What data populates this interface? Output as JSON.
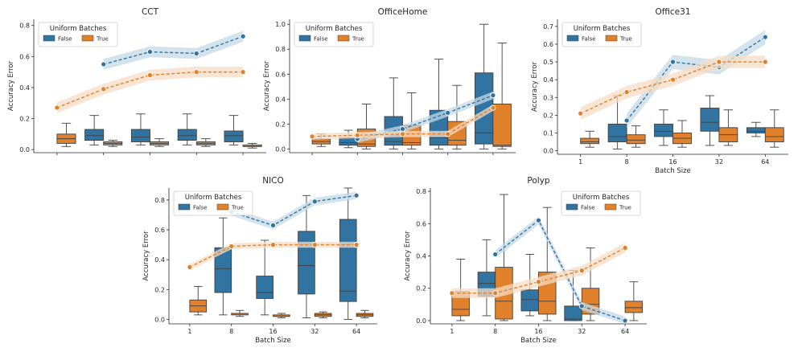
{
  "figure": {
    "x_title": "Batch Size",
    "y_title": "Accuracy Error",
    "legend_title": "Uniform Batches"
  },
  "colors": {
    "False": "#3274a1",
    "True": "#e1812c"
  },
  "chart_data": [
    {
      "type": "box+line",
      "title": "CCT",
      "categories": [
        "1",
        "8",
        "16",
        "32",
        "64"
      ],
      "show_x_tick_labels": false,
      "show_x_title": false,
      "ylim": [
        -0.02,
        0.84
      ],
      "yticks": [
        0.0,
        0.2,
        0.4,
        0.6,
        0.8
      ],
      "legend": {
        "position": "top-left",
        "entries": [
          "False",
          "True"
        ]
      },
      "boxes": {
        "False": [
          null,
          {
            "whislo": 0.03,
            "q1": 0.06,
            "med": 0.09,
            "q3": 0.13,
            "whishi": 0.22
          },
          {
            "whislo": 0.03,
            "q1": 0.05,
            "med": 0.08,
            "q3": 0.13,
            "whishi": 0.23
          },
          {
            "whislo": 0.03,
            "q1": 0.06,
            "med": 0.09,
            "q3": 0.13,
            "whishi": 0.23
          },
          {
            "whislo": 0.03,
            "q1": 0.05,
            "med": 0.09,
            "q3": 0.12,
            "whishi": 0.22
          }
        ],
        "True": [
          {
            "whislo": 0.02,
            "q1": 0.04,
            "med": 0.07,
            "q3": 0.1,
            "whishi": 0.17
          },
          {
            "whislo": 0.02,
            "q1": 0.03,
            "med": 0.04,
            "q3": 0.05,
            "whishi": 0.06
          },
          {
            "whislo": 0.02,
            "q1": 0.03,
            "med": 0.04,
            "q3": 0.05,
            "whishi": 0.07
          },
          {
            "whislo": 0.02,
            "q1": 0.03,
            "med": 0.04,
            "q3": 0.05,
            "whishi": 0.07
          },
          {
            "whislo": 0.01,
            "q1": 0.02,
            "med": 0.02,
            "q3": 0.03,
            "whishi": 0.04
          }
        ]
      },
      "lines": {
        "False": {
          "x": [
            "8",
            "16",
            "32",
            "64"
          ],
          "y": [
            0.55,
            0.63,
            0.62,
            0.73
          ],
          "band": 0.035
        },
        "True": {
          "x": [
            "1",
            "8",
            "16",
            "32",
            "64"
          ],
          "y": [
            0.27,
            0.39,
            0.48,
            0.5,
            0.5
          ],
          "band": 0.035
        }
      }
    },
    {
      "type": "box+line",
      "title": "OfficeHome",
      "categories": [
        "1",
        "8",
        "16",
        "32",
        "64"
      ],
      "show_x_tick_labels": false,
      "show_x_title": false,
      "ylim": [
        -0.03,
        1.04
      ],
      "yticks": [
        0.0,
        0.2,
        0.4,
        0.6,
        0.8,
        1.0
      ],
      "legend": {
        "position": "top-left",
        "entries": [
          "False",
          "True"
        ]
      },
      "boxes": {
        "False": [
          null,
          {
            "whislo": 0.01,
            "q1": 0.03,
            "med": 0.05,
            "q3": 0.09,
            "whishi": 0.15
          },
          {
            "whislo": 0.0,
            "q1": 0.03,
            "med": 0.06,
            "q3": 0.26,
            "whishi": 0.57
          },
          {
            "whislo": 0.0,
            "q1": 0.03,
            "med": 0.09,
            "q3": 0.31,
            "whishi": 0.72
          },
          {
            "whislo": 0.0,
            "q1": 0.04,
            "med": 0.13,
            "q3": 0.61,
            "whishi": 1.0
          }
        ],
        "True": [
          {
            "whislo": 0.02,
            "q1": 0.04,
            "med": 0.06,
            "q3": 0.08,
            "whishi": 0.12
          },
          {
            "whislo": 0.0,
            "q1": 0.02,
            "med": 0.04,
            "q3": 0.16,
            "whishi": 0.36
          },
          {
            "whislo": 0.0,
            "q1": 0.03,
            "med": 0.05,
            "q3": 0.19,
            "whishi": 0.45
          },
          {
            "whislo": 0.0,
            "q1": 0.03,
            "med": 0.07,
            "q3": 0.22,
            "whishi": 0.51
          },
          {
            "whislo": 0.0,
            "q1": 0.02,
            "med": 0.03,
            "q3": 0.36,
            "whishi": 0.85
          }
        ]
      },
      "lines": {
        "False": {
          "x": [
            "8",
            "16",
            "32",
            "64"
          ],
          "y": [
            0.08,
            0.16,
            0.29,
            0.43
          ],
          "band": 0.03
        },
        "True": {
          "x": [
            "1",
            "8",
            "16",
            "32",
            "64"
          ],
          "y": [
            0.1,
            0.11,
            0.12,
            0.12,
            0.33
          ],
          "band": 0.025
        }
      }
    },
    {
      "type": "box+line",
      "title": "Office31",
      "categories": [
        "1",
        "8",
        "16",
        "32",
        "64"
      ],
      "show_x_tick_labels": true,
      "show_x_title": true,
      "ylim": [
        -0.02,
        0.74
      ],
      "yticks": [
        0.0,
        0.1,
        0.2,
        0.3,
        0.4,
        0.5,
        0.6,
        0.7
      ],
      "legend": {
        "position": "top-left",
        "entries": [
          "False",
          "True"
        ]
      },
      "boxes": {
        "False": [
          null,
          {
            "whislo": 0.01,
            "q1": 0.05,
            "med": 0.08,
            "q3": 0.15,
            "whishi": 0.31
          },
          {
            "whislo": 0.03,
            "q1": 0.08,
            "med": 0.11,
            "q3": 0.15,
            "whishi": 0.23
          },
          {
            "whislo": 0.03,
            "q1": 0.11,
            "med": 0.16,
            "q3": 0.24,
            "whishi": 0.31
          },
          {
            "whislo": 0.08,
            "q1": 0.1,
            "med": 0.11,
            "q3": 0.13,
            "whishi": 0.16
          }
        ],
        "True": [
          {
            "whislo": 0.02,
            "q1": 0.04,
            "med": 0.05,
            "q3": 0.07,
            "whishi": 0.11
          },
          {
            "whislo": 0.02,
            "q1": 0.04,
            "med": 0.06,
            "q3": 0.09,
            "whishi": 0.14
          },
          {
            "whislo": 0.02,
            "q1": 0.04,
            "med": 0.07,
            "q3": 0.1,
            "whishi": 0.17
          },
          {
            "whislo": 0.03,
            "q1": 0.05,
            "med": 0.09,
            "q3": 0.13,
            "whishi": 0.23
          },
          {
            "whislo": 0.02,
            "q1": 0.05,
            "med": 0.08,
            "q3": 0.13,
            "whishi": 0.23
          }
        ]
      },
      "lines": {
        "False": {
          "x": [
            "8",
            "16",
            "32",
            "64"
          ],
          "y": [
            0.17,
            0.5,
            0.47,
            0.64
          ],
          "band": 0.04
        },
        "True": {
          "x": [
            "1",
            "8",
            "16",
            "32",
            "64"
          ],
          "y": [
            0.21,
            0.33,
            0.4,
            0.5,
            0.5
          ],
          "band": 0.035
        }
      }
    },
    {
      "type": "box+line",
      "title": "NICO",
      "categories": [
        "1",
        "8",
        "16",
        "32",
        "64"
      ],
      "show_x_tick_labels": true,
      "show_x_title": true,
      "ylim": [
        -0.03,
        0.88
      ],
      "yticks": [
        0.0,
        0.2,
        0.4,
        0.6,
        0.8
      ],
      "legend": {
        "position": "top-left",
        "entries": [
          "False",
          "True"
        ]
      },
      "boxes": {
        "False": [
          null,
          {
            "whislo": 0.03,
            "q1": 0.18,
            "med": 0.34,
            "q3": 0.48,
            "whishi": 0.68
          },
          {
            "whislo": 0.03,
            "q1": 0.14,
            "med": 0.18,
            "q3": 0.29,
            "whishi": 0.53
          },
          {
            "whislo": 0.01,
            "q1": 0.17,
            "med": 0.36,
            "q3": 0.59,
            "whishi": 0.83
          },
          {
            "whislo": 0.0,
            "q1": 0.12,
            "med": 0.19,
            "q3": 0.67,
            "whishi": 0.88
          }
        ],
        "True": [
          {
            "whislo": 0.03,
            "q1": 0.05,
            "med": 0.09,
            "q3": 0.13,
            "whishi": 0.22
          },
          {
            "whislo": 0.02,
            "q1": 0.03,
            "med": 0.04,
            "q3": 0.04,
            "whishi": 0.06
          },
          {
            "whislo": 0.01,
            "q1": 0.02,
            "med": 0.02,
            "q3": 0.03,
            "whishi": 0.04
          },
          {
            "whislo": 0.01,
            "q1": 0.02,
            "med": 0.03,
            "q3": 0.04,
            "whishi": 0.05
          },
          {
            "whislo": 0.01,
            "q1": 0.02,
            "med": 0.03,
            "q3": 0.04,
            "whishi": 0.06
          }
        ]
      },
      "lines": {
        "False": {
          "x": [
            "8",
            "16",
            "32",
            "64"
          ],
          "y": [
            0.72,
            0.63,
            0.79,
            0.83
          ],
          "band": 0.025
        },
        "True": {
          "x": [
            "1",
            "8",
            "16",
            "32",
            "64"
          ],
          "y": [
            0.35,
            0.49,
            0.5,
            0.5,
            0.5
          ],
          "band": 0.02
        }
      }
    },
    {
      "type": "box+line",
      "title": "Polyp",
      "categories": [
        "1",
        "8",
        "16",
        "32",
        "64"
      ],
      "show_x_tick_labels": true,
      "show_x_title": true,
      "ylim": [
        -0.02,
        0.82
      ],
      "yticks": [
        0.0,
        0.2,
        0.4,
        0.6,
        0.8
      ],
      "legend": {
        "position": "top-right",
        "entries": [
          "False",
          "True"
        ]
      },
      "boxes": {
        "False": [
          null,
          {
            "whislo": 0.03,
            "q1": 0.15,
            "med": 0.23,
            "q3": 0.3,
            "whishi": 0.5
          },
          {
            "whislo": 0.03,
            "q1": 0.06,
            "med": 0.13,
            "q3": 0.19,
            "whishi": 0.41
          },
          {
            "whislo": 0.0,
            "q1": 0.0,
            "med": 0.01,
            "q3": 0.09,
            "whishi": 0.31
          },
          null
        ],
        "True": [
          {
            "whislo": 0.0,
            "q1": 0.03,
            "med": 0.07,
            "q3": 0.18,
            "whishi": 0.38
          },
          {
            "whislo": 0.0,
            "q1": 0.01,
            "med": 0.12,
            "q3": 0.33,
            "whishi": 0.78
          },
          {
            "whislo": 0.0,
            "q1": 0.04,
            "med": 0.12,
            "q3": 0.3,
            "whishi": 0.7
          },
          {
            "whislo": 0.0,
            "q1": 0.04,
            "med": 0.1,
            "q3": 0.2,
            "whishi": 0.45
          },
          {
            "whislo": 0.0,
            "q1": 0.05,
            "med": 0.08,
            "q3": 0.12,
            "whishi": 0.24
          }
        ]
      },
      "lines": {
        "False": {
          "x": [
            "8",
            "16",
            "32",
            "64"
          ],
          "y": [
            0.41,
            0.62,
            0.09,
            0.0
          ],
          "band": 0.025
        },
        "True": {
          "x": [
            "1",
            "8",
            "16",
            "32",
            "64"
          ],
          "y": [
            0.17,
            0.17,
            0.24,
            0.31,
            0.45
          ],
          "band": 0.03
        }
      }
    }
  ]
}
